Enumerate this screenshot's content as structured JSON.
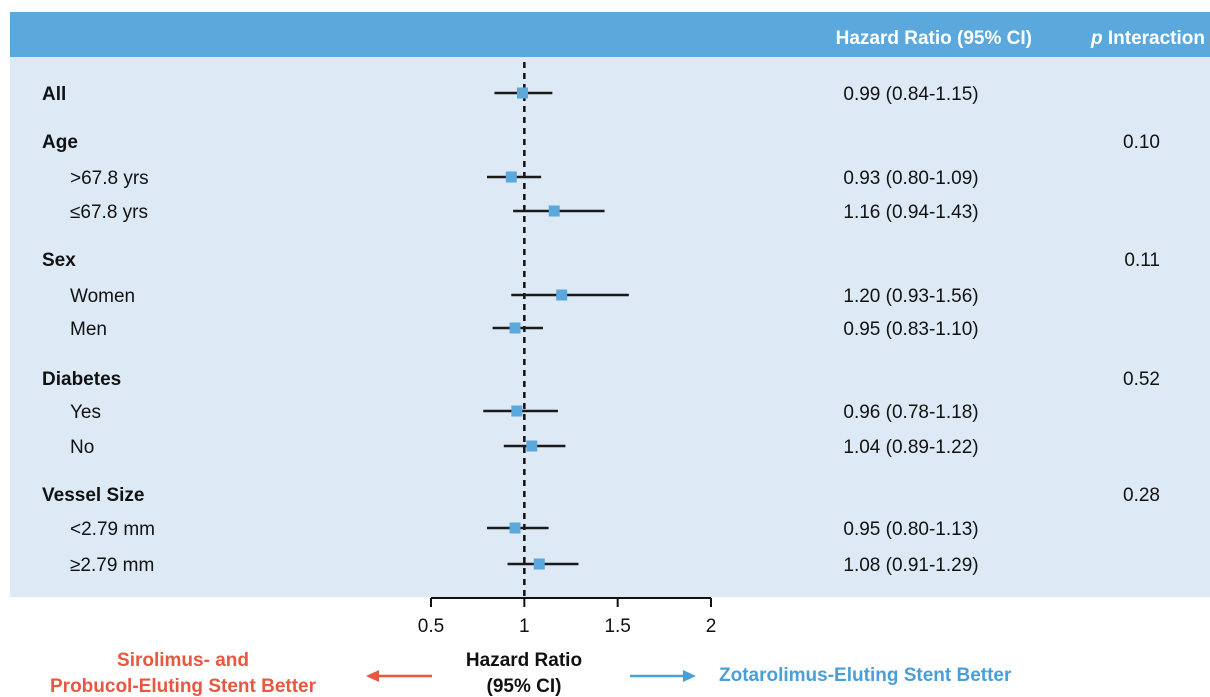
{
  "colors": {
    "header_bg": "#5ba8dc",
    "panel_bg": "#ddeaf6",
    "marker": "#5ba8dc",
    "ci_line": "#1a1a1a",
    "favors_left": "#e8573f",
    "favors_right": "#4a9fd6"
  },
  "header": {
    "hr_col": "Hazard Ratio (95% CI)",
    "p_col_italic": "p",
    "p_col": " Interaction"
  },
  "chart_data": {
    "type": "forest",
    "reference_line": 1,
    "xlim": [
      0.5,
      2
    ],
    "x_ticks": [
      "0.5",
      "1",
      "1.5",
      "2"
    ],
    "x_tick_values": [
      0.5,
      1,
      1.5,
      2
    ],
    "xlabel_line1": "Hazard Ratio",
    "xlabel_line2": "(95% CI)",
    "favors_left_line1": "Sirolimus- and",
    "favors_left_line2": "Probucol-Eluting Stent Better",
    "favors_right": "Zotarolimus-Eluting Stent Better",
    "rows": [
      {
        "label": "All",
        "bold": true,
        "hr": 0.99,
        "lo": 0.84,
        "hi": 1.15,
        "hr_text": "0.99 (0.84-1.15)",
        "p": ""
      },
      {
        "label": "Age",
        "bold": true,
        "hr": null,
        "lo": null,
        "hi": null,
        "hr_text": "",
        "p": "0.10"
      },
      {
        "label": ">67.8 yrs",
        "bold": false,
        "hr": 0.93,
        "lo": 0.8,
        "hi": 1.09,
        "hr_text": "0.93 (0.80-1.09)",
        "p": ""
      },
      {
        "label": "≤67.8 yrs",
        "bold": false,
        "hr": 1.16,
        "lo": 0.94,
        "hi": 1.43,
        "hr_text": "1.16 (0.94-1.43)",
        "p": ""
      },
      {
        "label": "Sex",
        "bold": true,
        "hr": null,
        "lo": null,
        "hi": null,
        "hr_text": "",
        "p": "0.11"
      },
      {
        "label": "Women",
        "bold": false,
        "hr": 1.2,
        "lo": 0.93,
        "hi": 1.56,
        "hr_text": "1.20 (0.93-1.56)",
        "p": ""
      },
      {
        "label": "Men",
        "bold": false,
        "hr": 0.95,
        "lo": 0.83,
        "hi": 1.1,
        "hr_text": "0.95 (0.83-1.10)",
        "p": ""
      },
      {
        "label": "Diabetes",
        "bold": true,
        "hr": null,
        "lo": null,
        "hi": null,
        "hr_text": "",
        "p": "0.52"
      },
      {
        "label": "Yes",
        "bold": false,
        "hr": 0.96,
        "lo": 0.78,
        "hi": 1.18,
        "hr_text": "0.96 (0.78-1.18)",
        "p": ""
      },
      {
        "label": "No",
        "bold": false,
        "hr": 1.04,
        "lo": 0.89,
        "hi": 1.22,
        "hr_text": "1.04 (0.89-1.22)",
        "p": ""
      },
      {
        "label": "Vessel Size",
        "bold": true,
        "hr": null,
        "lo": null,
        "hi": null,
        "hr_text": "",
        "p": "0.28"
      },
      {
        "label": "<2.79 mm",
        "bold": false,
        "hr": 0.95,
        "lo": 0.8,
        "hi": 1.13,
        "hr_text": "0.95 (0.80-1.13)",
        "p": ""
      },
      {
        "label": "≥2.79 mm",
        "bold": false,
        "hr": 1.08,
        "lo": 0.91,
        "hi": 1.29,
        "hr_text": "1.08 (0.91-1.29)",
        "p": ""
      }
    ]
  }
}
